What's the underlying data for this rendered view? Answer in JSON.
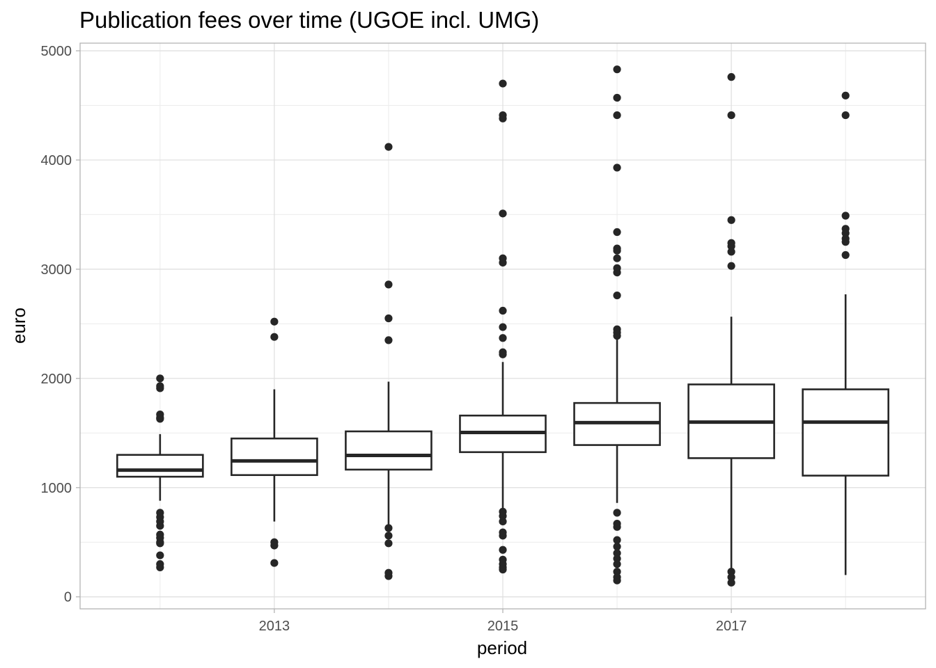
{
  "chart_data": {
    "type": "boxplot",
    "title": "Publication fees over time (UGOE incl. UMG)",
    "xlabel": "period",
    "ylabel": "euro",
    "xlim": [
      2011.3,
      2018.7
    ],
    "ylim": [
      -110,
      5070
    ],
    "x_ticks": [
      2013,
      2015,
      2017
    ],
    "y_ticks": [
      0,
      1000,
      2000,
      3000,
      4000,
      5000
    ],
    "grid": true,
    "colors": {
      "panel_border": "#b3b3b3",
      "grid_major": "#dedede",
      "grid_minor": "#ececec",
      "box_line": "#262626",
      "outlier": "#262626",
      "box_fill": "#ffffff"
    },
    "boxes": [
      {
        "x": 2012,
        "lower_whisker": 880,
        "q1": 1100,
        "median": 1160,
        "q3": 1300,
        "upper_whisker": 1490,
        "outliers": [
          2000,
          1930,
          1910,
          1670,
          1640,
          1630,
          770,
          730,
          690,
          650,
          570,
          540,
          500,
          490,
          380,
          300,
          270
        ]
      },
      {
        "x": 2013,
        "lower_whisker": 690,
        "q1": 1115,
        "median": 1245,
        "q3": 1450,
        "upper_whisker": 1900,
        "outliers": [
          2520,
          2380,
          500,
          470,
          310
        ]
      },
      {
        "x": 2014,
        "lower_whisker": 650,
        "q1": 1165,
        "median": 1295,
        "q3": 1515,
        "upper_whisker": 1970,
        "outliers": [
          4120,
          2860,
          2550,
          2350,
          630,
          560,
          490,
          220,
          190
        ]
      },
      {
        "x": 2015,
        "lower_whisker": 790,
        "q1": 1325,
        "median": 1505,
        "q3": 1660,
        "upper_whisker": 2150,
        "outliers": [
          4700,
          4410,
          4380,
          3510,
          3100,
          3060,
          2620,
          2470,
          2370,
          2240,
          2220,
          780,
          740,
          690,
          590,
          560,
          430,
          340,
          300,
          270,
          250
        ]
      },
      {
        "x": 2016,
        "lower_whisker": 860,
        "q1": 1390,
        "median": 1595,
        "q3": 1775,
        "upper_whisker": 2370,
        "outliers": [
          4830,
          4570,
          4410,
          3930,
          3340,
          3190,
          3170,
          3100,
          3010,
          2970,
          2760,
          2450,
          2420,
          2390,
          770,
          670,
          640,
          520,
          460,
          400,
          350,
          300,
          230,
          180,
          150
        ]
      },
      {
        "x": 2017,
        "lower_whisker": 230,
        "q1": 1270,
        "median": 1600,
        "q3": 1945,
        "upper_whisker": 2565,
        "outliers": [
          4760,
          4410,
          3450,
          3240,
          3210,
          3160,
          3030,
          230,
          180,
          130
        ]
      },
      {
        "x": 2018,
        "lower_whisker": 200,
        "q1": 1110,
        "median": 1600,
        "q3": 1900,
        "upper_whisker": 2770,
        "outliers": [
          4590,
          4410,
          3490,
          3370,
          3330,
          3280,
          3250,
          3130
        ]
      }
    ]
  }
}
